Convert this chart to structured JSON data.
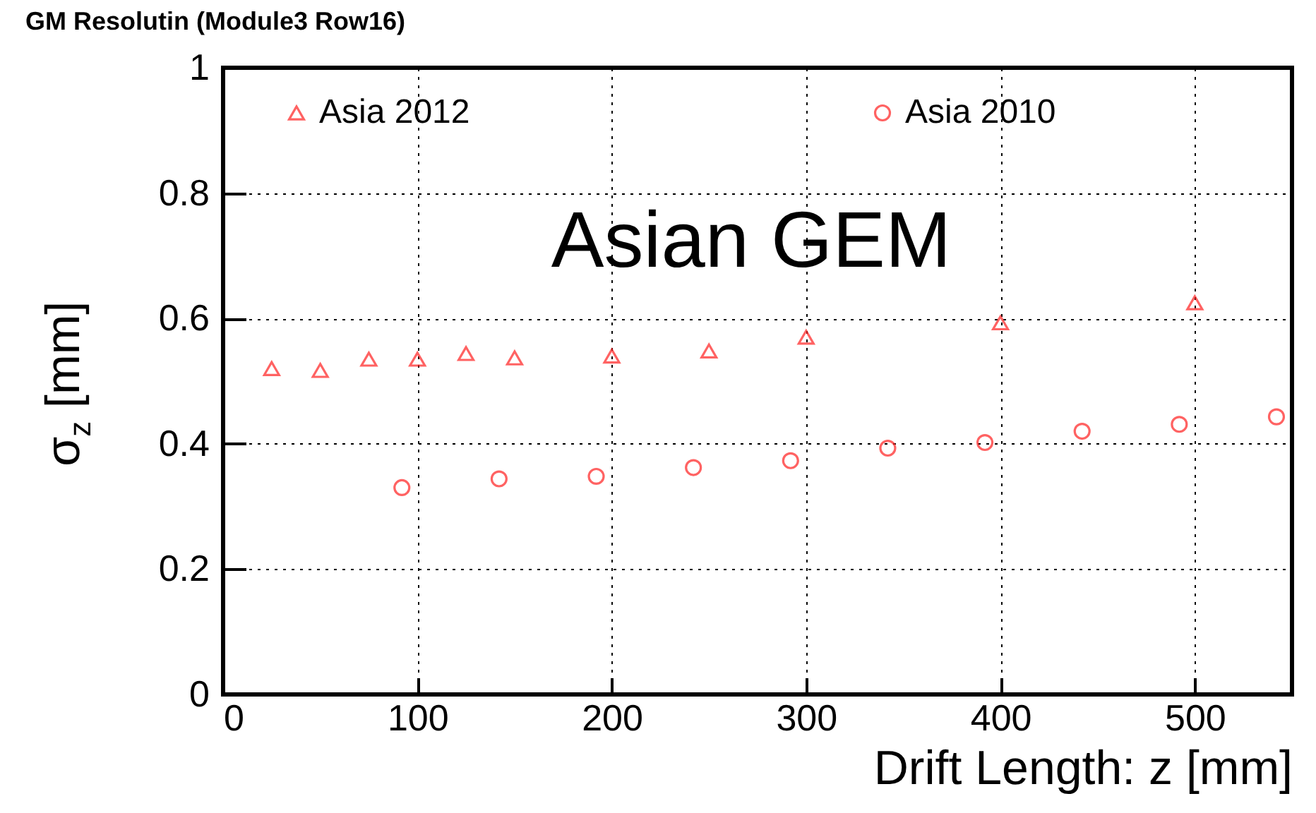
{
  "chart_data": {
    "type": "scatter",
    "title": "GM Resolutin (Module3 Row16)",
    "xlabel": "Drift Length: z [mm]",
    "ylabel": "σ$_{z}$ [mm]",
    "annotations": [
      "Asian GEM"
    ],
    "xlim": [
      0,
      550
    ],
    "xticks": [
      0,
      100,
      200,
      300,
      400,
      500
    ],
    "ylim": [
      0,
      1
    ],
    "yticks": [
      0,
      0.2,
      0.4,
      0.6,
      0.8,
      1
    ],
    "grid": true,
    "legend": "top",
    "series": [
      {
        "name": "Asia 2012",
        "color": "#ff2020",
        "marker": "triangle",
        "x": [
          25,
          50,
          75,
          100,
          125,
          150,
          200,
          250,
          300,
          400,
          500
        ],
        "values": [
          0.52,
          0.517,
          0.535,
          0.535,
          0.544,
          0.537,
          0.54,
          0.548,
          0.57,
          0.593,
          0.625
        ]
      },
      {
        "name": "Asia 2010",
        "color": "#ff2020",
        "marker": "circle",
        "x": [
          92,
          142,
          192,
          242,
          292,
          342,
          392,
          442,
          492,
          542
        ],
        "values": [
          0.33,
          0.344,
          0.348,
          0.362,
          0.373,
          0.393,
          0.402,
          0.42,
          0.431,
          0.443
        ]
      }
    ]
  }
}
